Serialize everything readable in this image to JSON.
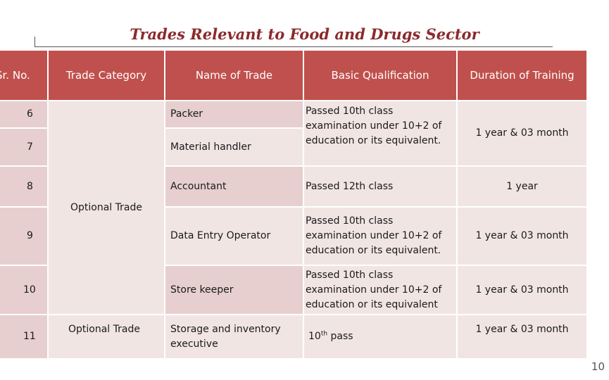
{
  "title": "Trades Relevant to Food and Drugs Sector",
  "headers": {
    "sr_no": "Sr. No.",
    "trade_category": "Trade Category",
    "name_of_trade": "Name of Trade",
    "basic_qualification": "Basic Qualification",
    "duration": "Duration of Training"
  },
  "rows": [
    {
      "sr": "6",
      "trade": "Packer"
    },
    {
      "sr": "7",
      "trade": "Material  handler"
    },
    {
      "sr": "8",
      "trade": "Accountant"
    },
    {
      "sr": "9",
      "trade": "Data Entry Operator"
    },
    {
      "sr": "10",
      "trade": "Store keeper"
    },
    {
      "sr": "11",
      "trade": "Storage and inventory executive"
    }
  ],
  "category_group": "Optional Trade",
  "category_row11": "Optional Trade",
  "qualification": {
    "q_6_7_lines": [
      "Passed 10th class",
      "examination under 10+2 of",
      "education or its equivalent."
    ],
    "q_8": "Passed 12th class",
    "q_9_lines": [
      "Passed 10th class",
      "examination under 10+2 of",
      "education or its equivalent."
    ],
    "q_10_lines": [
      "Passed 10th class",
      "examination under 10+2 of",
      "education or its equivalent"
    ],
    "q_11_base": "10",
    "q_11_sup": "th",
    "q_11_rest": " pass"
  },
  "duration": {
    "d_6_7": "1 year & 03 month",
    "d_8": "1 year",
    "d_9": "1 year & 03 month",
    "d_10": "1 year & 03 month",
    "d_11": "1 year & 03 month"
  },
  "page_number": "10"
}
